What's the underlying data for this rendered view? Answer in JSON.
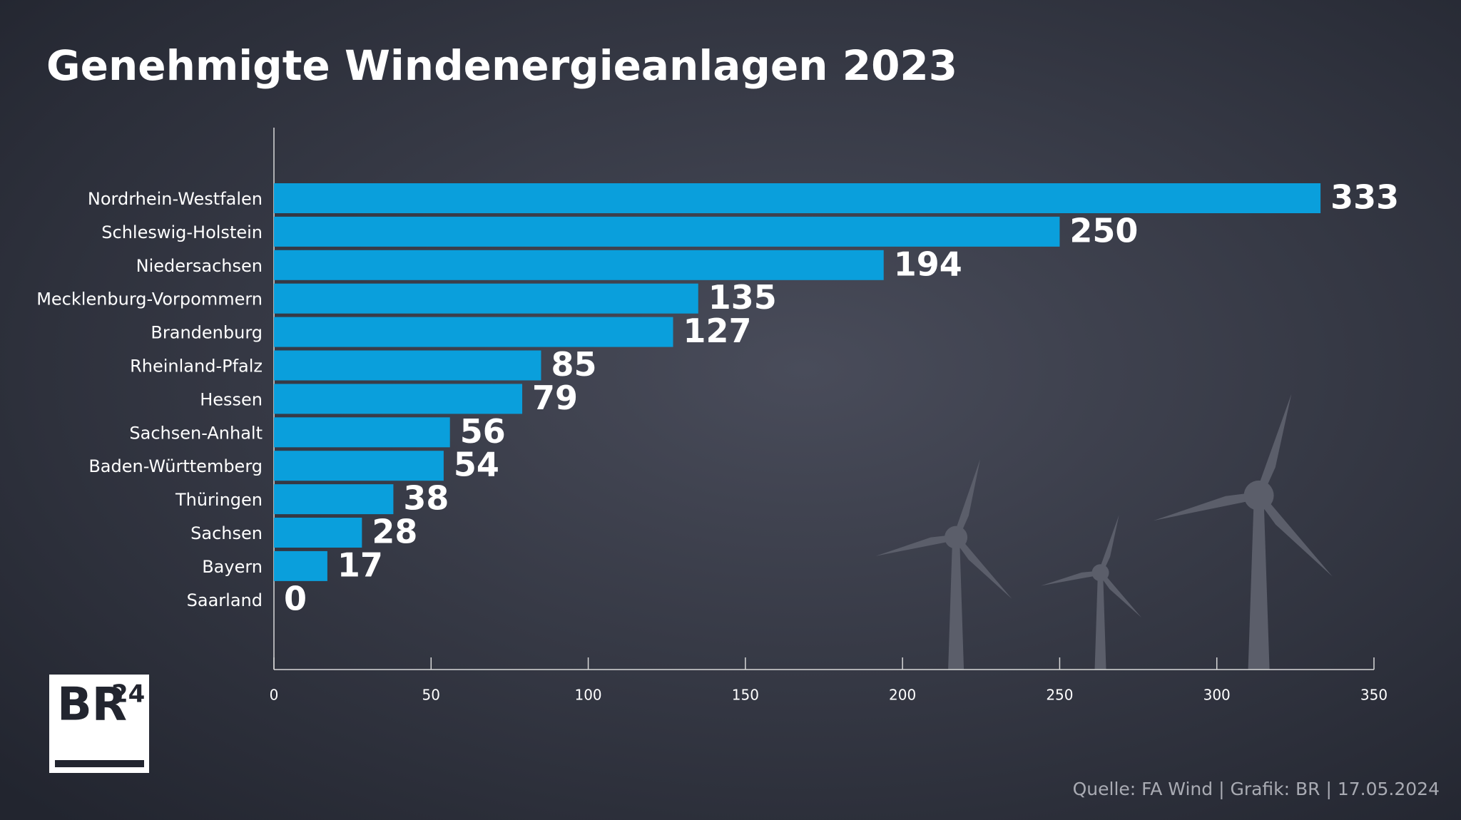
{
  "chart_data": {
    "type": "bar",
    "orientation": "horizontal",
    "title": "Genehmigte Windenergieanlagen 2023",
    "categories": [
      "Nordrhein-Westfalen",
      "Schleswig-Holstein",
      "Niedersachsen",
      "Mecklenburg-Vorpommern",
      "Brandenburg",
      "Rheinland-Pfalz",
      "Hessen",
      "Sachsen-Anhalt",
      "Baden-Württemberg",
      "Thüringen",
      "Sachsen",
      "Bayern",
      "Saarland"
    ],
    "values": [
      333,
      250,
      194,
      135,
      127,
      85,
      79,
      56,
      54,
      38,
      28,
      17,
      0
    ],
    "color": "#0a9fdc",
    "xlim": [
      0,
      350
    ],
    "xticks": [
      0,
      50,
      100,
      150,
      200,
      250,
      300,
      350
    ],
    "source": "Quelle: FA Wind | Grafik: BR | 17.05.2024",
    "logo": {
      "main": "BR",
      "sup": "24"
    }
  }
}
